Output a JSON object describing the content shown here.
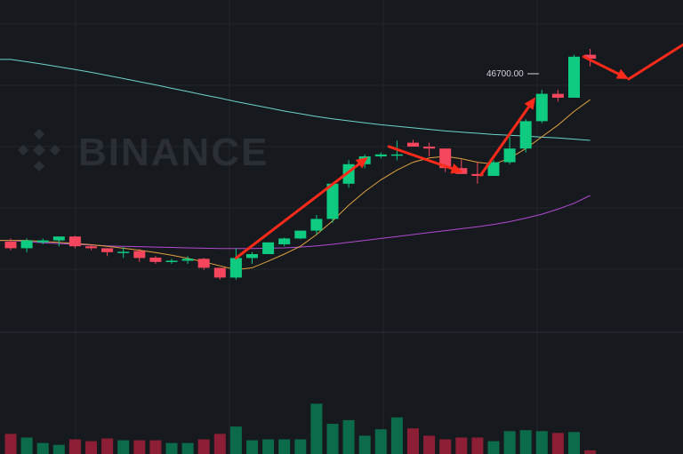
{
  "watermark": "BINANCE",
  "colors": {
    "background": "#161a1e",
    "grid": "#22262c",
    "up": "#0ecb81",
    "down": "#f6465d",
    "up_volume": "#0c6b4a",
    "down_volume": "#8c1f35",
    "ma_short": "#e0a040",
    "ma_mid": "#b24bd1",
    "ma_long": "#6dd3d1",
    "arrow": "#ff2a1a",
    "watermark": "#2a2e35"
  },
  "price_marker": {
    "label": "46700.00",
    "value": 46700
  },
  "chart_data": {
    "type": "candlestick",
    "grid": true,
    "price_range": [
      39500,
      48000
    ],
    "volume_range": [
      0,
      100
    ],
    "candles": [
      {
        "o": 41820,
        "h": 41900,
        "l": 41600,
        "c": 41650,
        "v": 22
      },
      {
        "o": 41650,
        "h": 41900,
        "l": 41550,
        "c": 41850,
        "v": 18
      },
      {
        "o": 41800,
        "h": 41900,
        "l": 41750,
        "c": 41850,
        "v": 12
      },
      {
        "o": 41850,
        "h": 41950,
        "l": 41700,
        "c": 41950,
        "v": 10
      },
      {
        "o": 41950,
        "h": 41970,
        "l": 41650,
        "c": 41700,
        "v": 16
      },
      {
        "o": 41700,
        "h": 41750,
        "l": 41600,
        "c": 41650,
        "v": 14
      },
      {
        "o": 41650,
        "h": 41650,
        "l": 41450,
        "c": 41550,
        "v": 17
      },
      {
        "o": 41550,
        "h": 41680,
        "l": 41400,
        "c": 41560,
        "v": 15
      },
      {
        "o": 41580,
        "h": 41630,
        "l": 41300,
        "c": 41400,
        "v": 15
      },
      {
        "o": 41410,
        "h": 41450,
        "l": 41250,
        "c": 41300,
        "v": 15
      },
      {
        "o": 41300,
        "h": 41380,
        "l": 41250,
        "c": 41330,
        "v": 12
      },
      {
        "o": 41330,
        "h": 41450,
        "l": 41250,
        "c": 41380,
        "v": 12
      },
      {
        "o": 41380,
        "h": 41400,
        "l": 41100,
        "c": 41150,
        "v": 16
      },
      {
        "o": 41150,
        "h": 41150,
        "l": 40850,
        "c": 40900,
        "v": 22
      },
      {
        "o": 40900,
        "h": 41650,
        "l": 40850,
        "c": 41400,
        "v": 30
      },
      {
        "o": 41400,
        "h": 41550,
        "l": 41250,
        "c": 41500,
        "v": 15
      },
      {
        "o": 41500,
        "h": 41800,
        "l": 41550,
        "c": 41800,
        "v": 16
      },
      {
        "o": 41750,
        "h": 41920,
        "l": 41700,
        "c": 41900,
        "v": 16
      },
      {
        "o": 41900,
        "h": 42100,
        "l": 41880,
        "c": 42100,
        "v": 16
      },
      {
        "o": 42100,
        "h": 42500,
        "l": 42000,
        "c": 42400,
        "v": 55
      },
      {
        "o": 42400,
        "h": 43300,
        "l": 42300,
        "c": 43300,
        "v": 33
      },
      {
        "o": 43300,
        "h": 43900,
        "l": 43200,
        "c": 43800,
        "v": 37
      },
      {
        "o": 43800,
        "h": 44050,
        "l": 43700,
        "c": 44000,
        "v": 20
      },
      {
        "o": 44000,
        "h": 44100,
        "l": 43950,
        "c": 44050,
        "v": 27
      },
      {
        "o": 44050,
        "h": 44400,
        "l": 43900,
        "c": 44050,
        "v": 40
      },
      {
        "o": 44350,
        "h": 44420,
        "l": 44250,
        "c": 44250,
        "v": 28
      },
      {
        "o": 44250,
        "h": 44350,
        "l": 44000,
        "c": 44200,
        "v": 20
      },
      {
        "o": 44200,
        "h": 44200,
        "l": 43600,
        "c": 43700,
        "v": 16
      },
      {
        "o": 43700,
        "h": 43920,
        "l": 43550,
        "c": 43550,
        "v": 18
      },
      {
        "o": 43550,
        "h": 43850,
        "l": 43300,
        "c": 43500,
        "v": 18
      },
      {
        "o": 43500,
        "h": 43900,
        "l": 43500,
        "c": 43850,
        "v": 14
      },
      {
        "o": 43850,
        "h": 44500,
        "l": 43800,
        "c": 44200,
        "v": 25
      },
      {
        "o": 44200,
        "h": 44950,
        "l": 44100,
        "c": 44900,
        "v": 26
      },
      {
        "o": 44900,
        "h": 45700,
        "l": 44850,
        "c": 45600,
        "v": 25
      },
      {
        "o": 45600,
        "h": 45700,
        "l": 45400,
        "c": 45500,
        "v": 23
      },
      {
        "o": 45500,
        "h": 46600,
        "l": 45500,
        "c": 46550,
        "v": 24
      },
      {
        "o": 46600,
        "h": 46750,
        "l": 46300,
        "c": 46500,
        "v": 4
      }
    ],
    "ma_short": [
      41850,
      41850,
      41820,
      41800,
      41770,
      41740,
      41700,
      41650,
      41600,
      41540,
      41470,
      41390,
      41300,
      41200,
      41100,
      41150,
      41320,
      41500,
      41700,
      42000,
      42350,
      42750,
      43100,
      43400,
      43650,
      43850,
      43960,
      44000,
      43940,
      43850,
      43800,
      43950,
      44200,
      44500,
      44800,
      45150,
      45450
    ],
    "ma_mid": [
      41850,
      41820,
      41790,
      41770,
      41750,
      41730,
      41710,
      41700,
      41690,
      41680,
      41670,
      41660,
      41650,
      41640,
      41640,
      41640,
      41650,
      41660,
      41680,
      41710,
      41750,
      41800,
      41850,
      41900,
      41950,
      42000,
      42050,
      42100,
      42150,
      42200,
      42260,
      42330,
      42420,
      42520,
      42650,
      42800,
      43000
    ],
    "ma_long": [
      46480,
      46420,
      46360,
      46290,
      46220,
      46150,
      46070,
      45990,
      45910,
      45830,
      45740,
      45660,
      45570,
      45490,
      45400,
      45320,
      45240,
      45160,
      45090,
      45020,
      44960,
      44910,
      44860,
      44810,
      44770,
      44730,
      44690,
      44650,
      44620,
      44590,
      44560,
      44540,
      44520,
      44490,
      44470,
      44440,
      44410
    ],
    "arrows": [
      {
        "x1": 14,
        "y1": 41400,
        "x2": 22.2,
        "y2": 43980
      },
      {
        "x1": 23.5,
        "y1": 44250,
        "x2": 28.1,
        "y2": 43590
      },
      {
        "x1": 29.2,
        "y1": 43520,
        "x2": 32.6,
        "y2": 45510
      },
      {
        "x1": 35.6,
        "y1": 46550,
        "x2": 38.4,
        "y2": 45980
      },
      {
        "x1": 38.4,
        "y1": 45980,
        "x2": 42.9,
        "y2": 47150
      }
    ]
  }
}
